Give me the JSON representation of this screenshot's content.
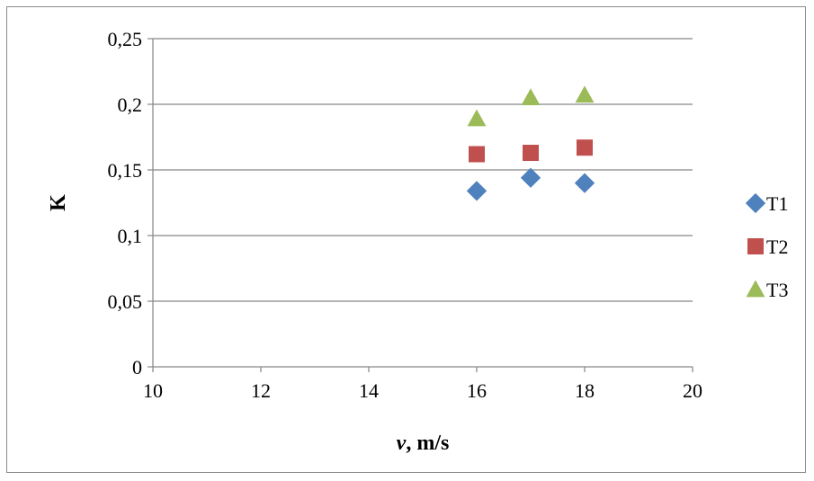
{
  "chart_data": {
    "type": "scatter",
    "xlabel_italic": "v",
    "xlabel_rest": ", m/s",
    "ylabel": "K",
    "xlim": [
      10,
      20
    ],
    "ylim": [
      0,
      0.25
    ],
    "x_ticks": [
      "10",
      "12",
      "14",
      "16",
      "18",
      "20"
    ],
    "y_ticks": [
      "0",
      "0,05",
      "0,1",
      "0,15",
      "0,2",
      "0,25"
    ],
    "grid": "horizontal",
    "legend_position": "right",
    "series": [
      {
        "name": "T1",
        "marker": "diamond",
        "color": "#4f81bd",
        "x": [
          16,
          17,
          18
        ],
        "y": [
          0.134,
          0.144,
          0.14
        ]
      },
      {
        "name": "T2",
        "marker": "square",
        "color": "#c0504d",
        "x": [
          16,
          17,
          18
        ],
        "y": [
          0.162,
          0.163,
          0.167
        ]
      },
      {
        "name": "T3",
        "marker": "triangle",
        "color": "#9bbb59",
        "x": [
          16,
          17,
          18
        ],
        "y": [
          0.189,
          0.205,
          0.207
        ]
      }
    ]
  }
}
